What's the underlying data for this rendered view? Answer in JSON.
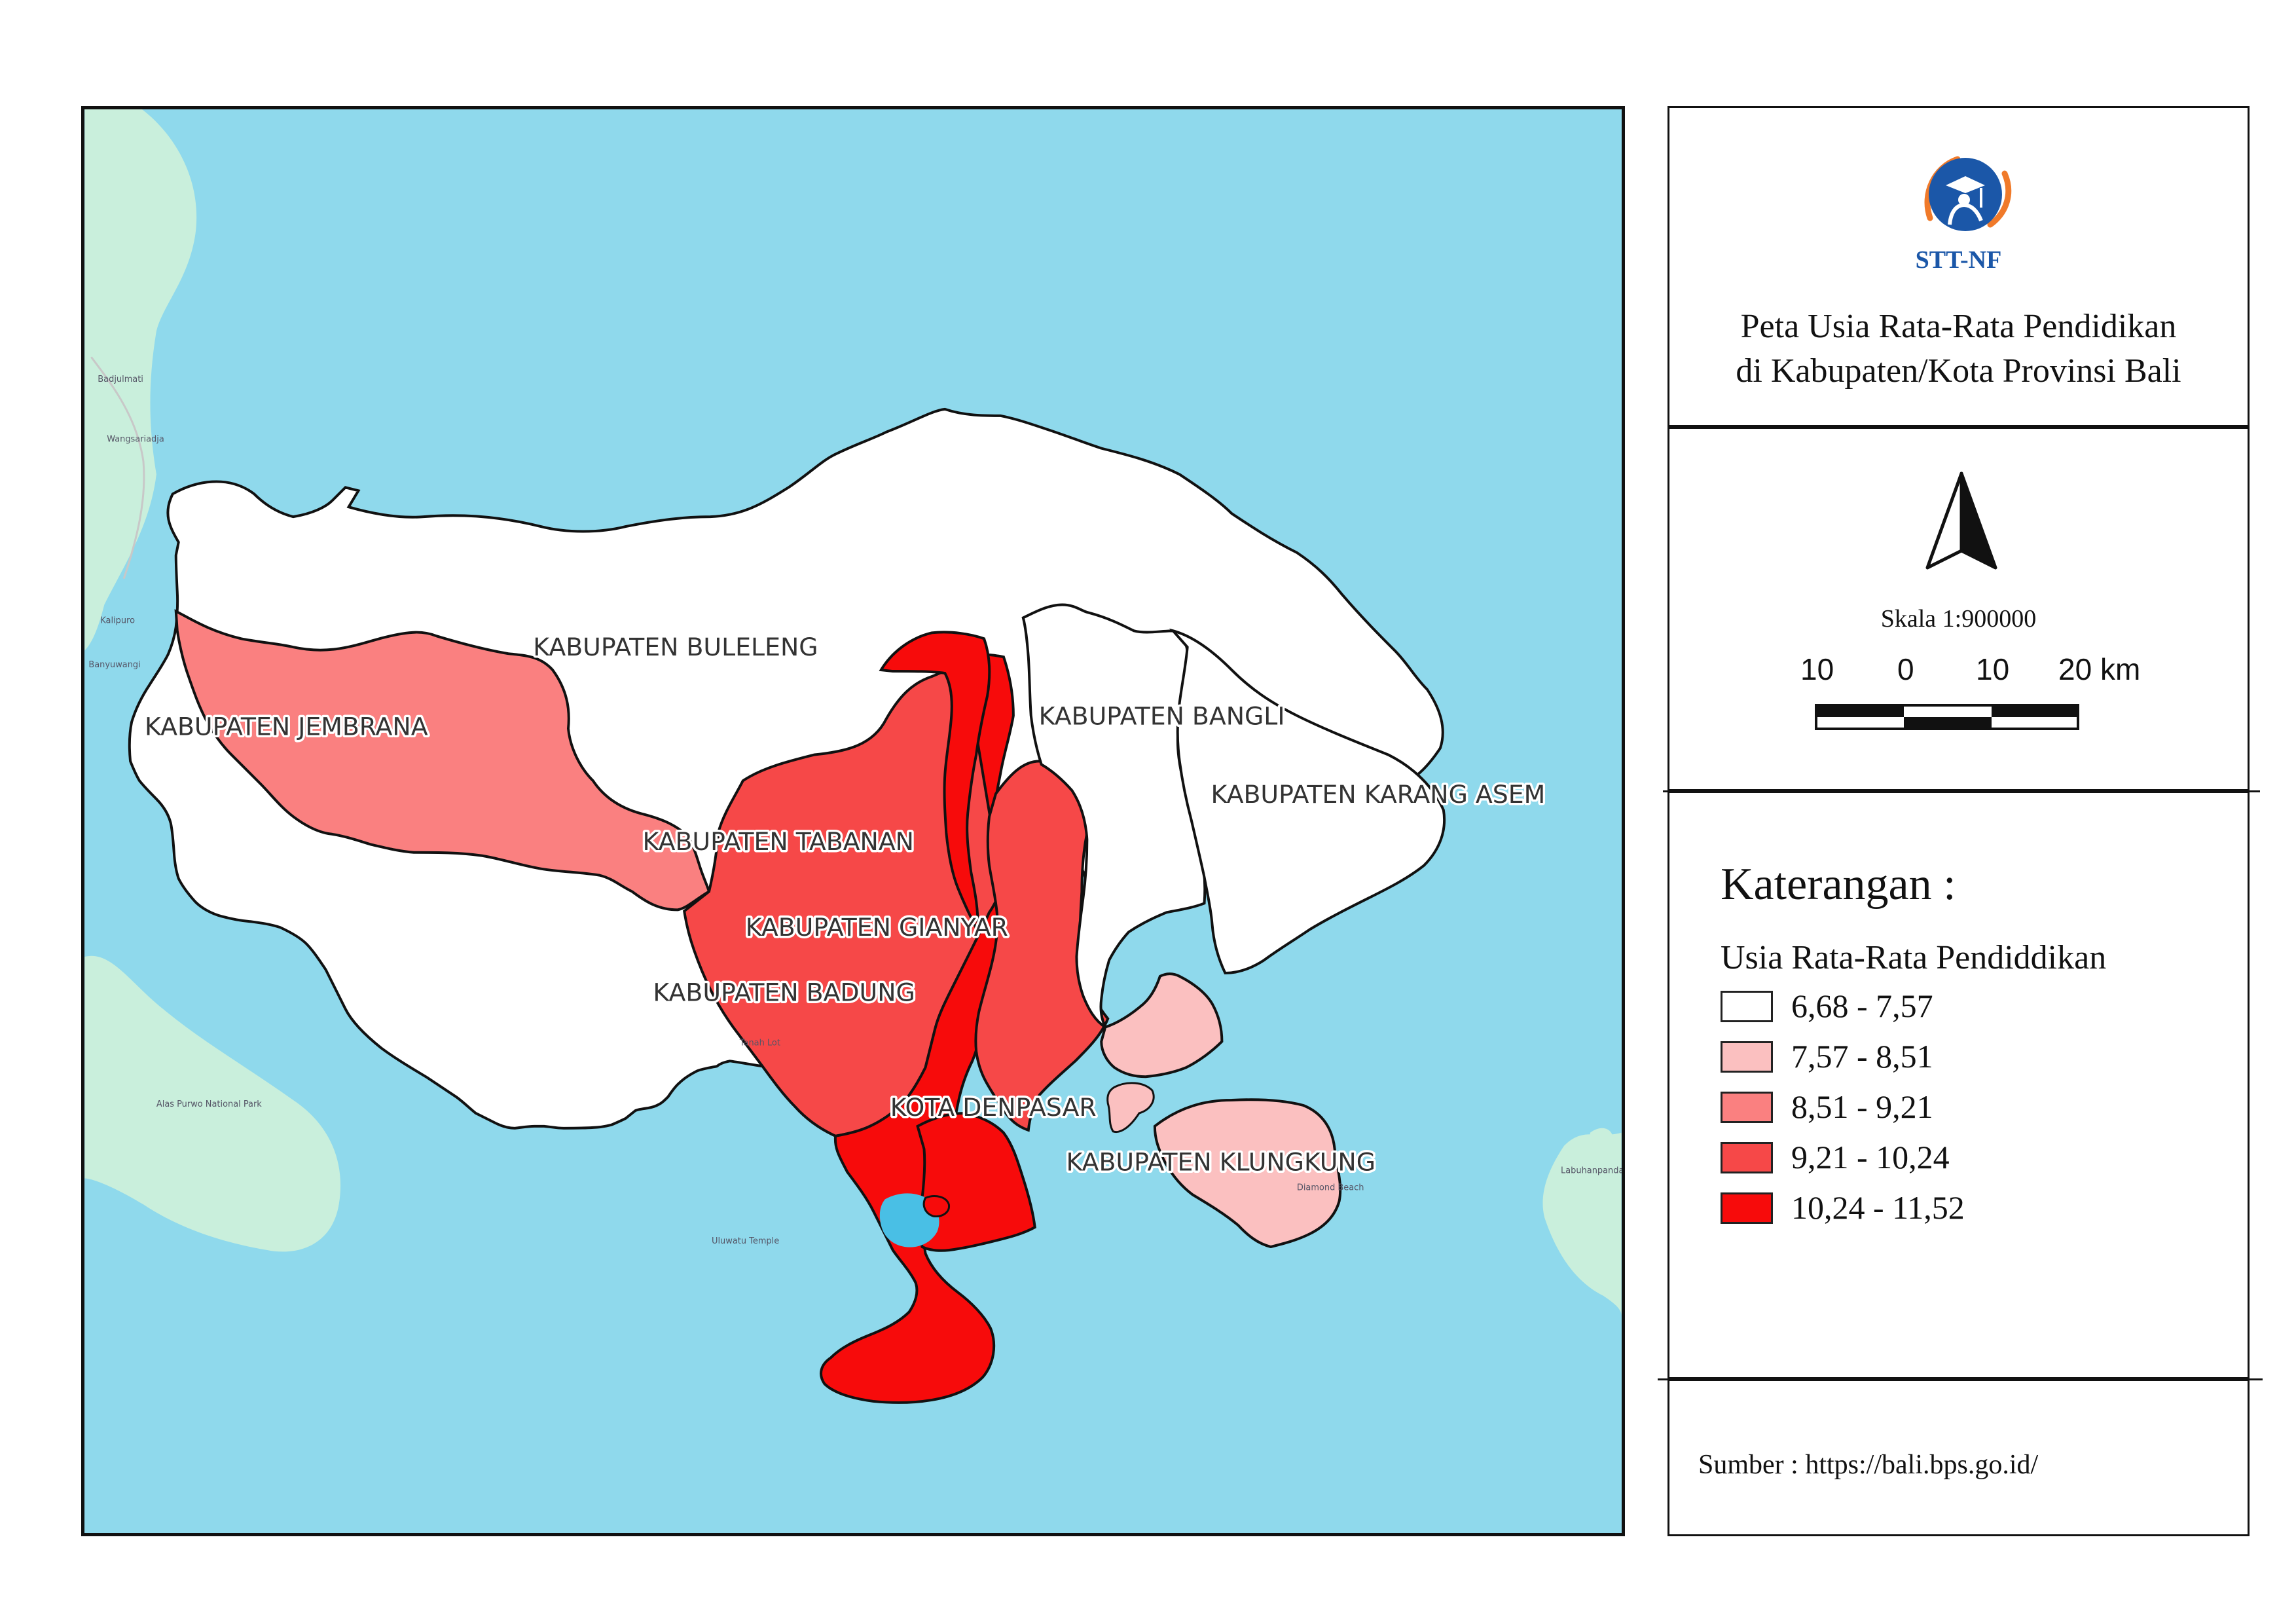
{
  "map": {
    "regions": [
      {
        "name": "KABUPATEN BULELENG",
        "class": "6,68 - 7,57",
        "color": "#ffffff"
      },
      {
        "name": "KABUPATEN JEMBRANA",
        "class": "8,51 - 9,21",
        "color": "#fa8080"
      },
      {
        "name": "KABUPATEN TABANAN",
        "class": "9,21 - 10,24",
        "color": "#f64848"
      },
      {
        "name": "KABUPATEN GIANYAR",
        "class": "9,21 - 10,24",
        "color": "#f64848"
      },
      {
        "name": "KABUPATEN BADUNG",
        "class": "10,24 - 11,52",
        "color": "#f70b0b"
      },
      {
        "name": "KOTA DENPASAR",
        "class": "10,24 - 11,52",
        "color": "#f70b0b"
      },
      {
        "name": "KABUPATEN BANGLI",
        "class": "6,68 - 7,57",
        "color": "#ffffff"
      },
      {
        "name": "KABUPATEN KARANG ASEM",
        "class": "6,68 - 7,57",
        "color": "#ffffff"
      },
      {
        "name": "KABUPATEN KLUNGKUNG",
        "class": "7,57 - 8,51",
        "color": "#fbc0c0"
      }
    ],
    "base_places": [
      "Badjulmati",
      "Wangsariadja",
      "Kalipuro",
      "Banyuwangi",
      "Alas Purwo National Park",
      "Tanah Lot",
      "Uluwatu Temple",
      "Labuhanpandan",
      "Diamond Beach"
    ],
    "colors": {
      "sea": "#8fd9ec",
      "land_base": "#c9efdc",
      "boundary": "#111111"
    }
  },
  "title_panel": {
    "logo_icon": "stt-nf-logo-icon",
    "org_label": "STT-NF",
    "title_line1": "Peta Usia Rata-Rata Pendidikan",
    "title_line2": "di Kabupaten/Kota Provinsi Bali"
  },
  "north_panel": {
    "north_icon": "north-arrow-icon",
    "scale_text": "Skala 1:900000",
    "scale_ticks": [
      "10",
      "0",
      "10",
      "20 km"
    ]
  },
  "legend": {
    "heading": "Katerangan :",
    "subtitle": "Usia Rata-Rata Pendiddikan",
    "items": [
      {
        "label": "6,68 - 7,57",
        "color": "#ffffff"
      },
      {
        "label": "7,57 - 8,51",
        "color": "#fbc0c0"
      },
      {
        "label": "8,51 - 9,21",
        "color": "#fa8080"
      },
      {
        "label": "9,21 - 10,24",
        "color": "#f64848"
      },
      {
        "label": "10,24 - 11,52",
        "color": "#f70b0b"
      }
    ]
  },
  "source": {
    "text": "Sumber : https://bali.bps.go.id/"
  }
}
